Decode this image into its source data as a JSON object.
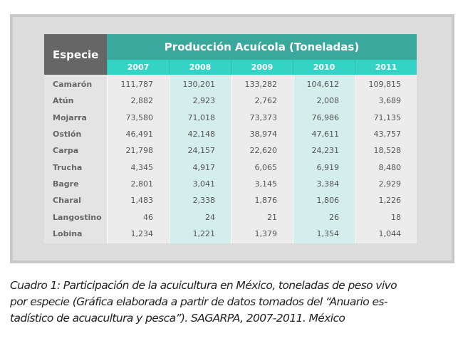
{
  "table": {
    "header": {
      "especie": "Especie",
      "title": "Producción Acuícola (Toneladas)",
      "years": [
        "2007",
        "2008",
        "2009",
        "2010",
        "2011"
      ]
    },
    "rows": [
      {
        "especie": "Camarón",
        "values": [
          "111,787",
          "130,201",
          "133,282",
          "104,612",
          "109,815"
        ]
      },
      {
        "especie": "Atún",
        "values": [
          "2,882",
          "2,923",
          "2,762",
          "2,008",
          "3,689"
        ]
      },
      {
        "especie": "Mojarra",
        "values": [
          "73,580",
          "71,018",
          "73,373",
          "76,986",
          "71,135"
        ]
      },
      {
        "especie": "Ostión",
        "values": [
          "46,491",
          "42,148",
          "38,974",
          "47,611",
          "43,757"
        ]
      },
      {
        "especie": "Carpa",
        "values": [
          "21,798",
          "24,157",
          "22,620",
          "24,231",
          "18,528"
        ]
      },
      {
        "especie": "Trucha",
        "values": [
          "4,345",
          "4,917",
          "6,065",
          "6,919",
          "8,480"
        ]
      },
      {
        "especie": "Bagre",
        "values": [
          "2,801",
          "3,041",
          "3,145",
          "3,384",
          "2,929"
        ]
      },
      {
        "especie": "Charal",
        "values": [
          "1,483",
          "2,338",
          "1,876",
          "1,806",
          "1,226"
        ]
      },
      {
        "especie": "Langostino",
        "values": [
          "46",
          "24",
          "21",
          "26",
          "18"
        ]
      },
      {
        "especie": "Lobina",
        "values": [
          "1,234",
          "1,221",
          "1,379",
          "1,354",
          "1,044"
        ]
      }
    ]
  },
  "caption": [
    "Cuadro 1: Participación de la acuicultura en México, toneladas de peso vivo",
    "por especie (Gráfica elaborada a partir de datos tomados del “Anuario es-",
    "tadístico de acuacultura y pesca”). SAGARPA, 2007-2011. México"
  ]
}
